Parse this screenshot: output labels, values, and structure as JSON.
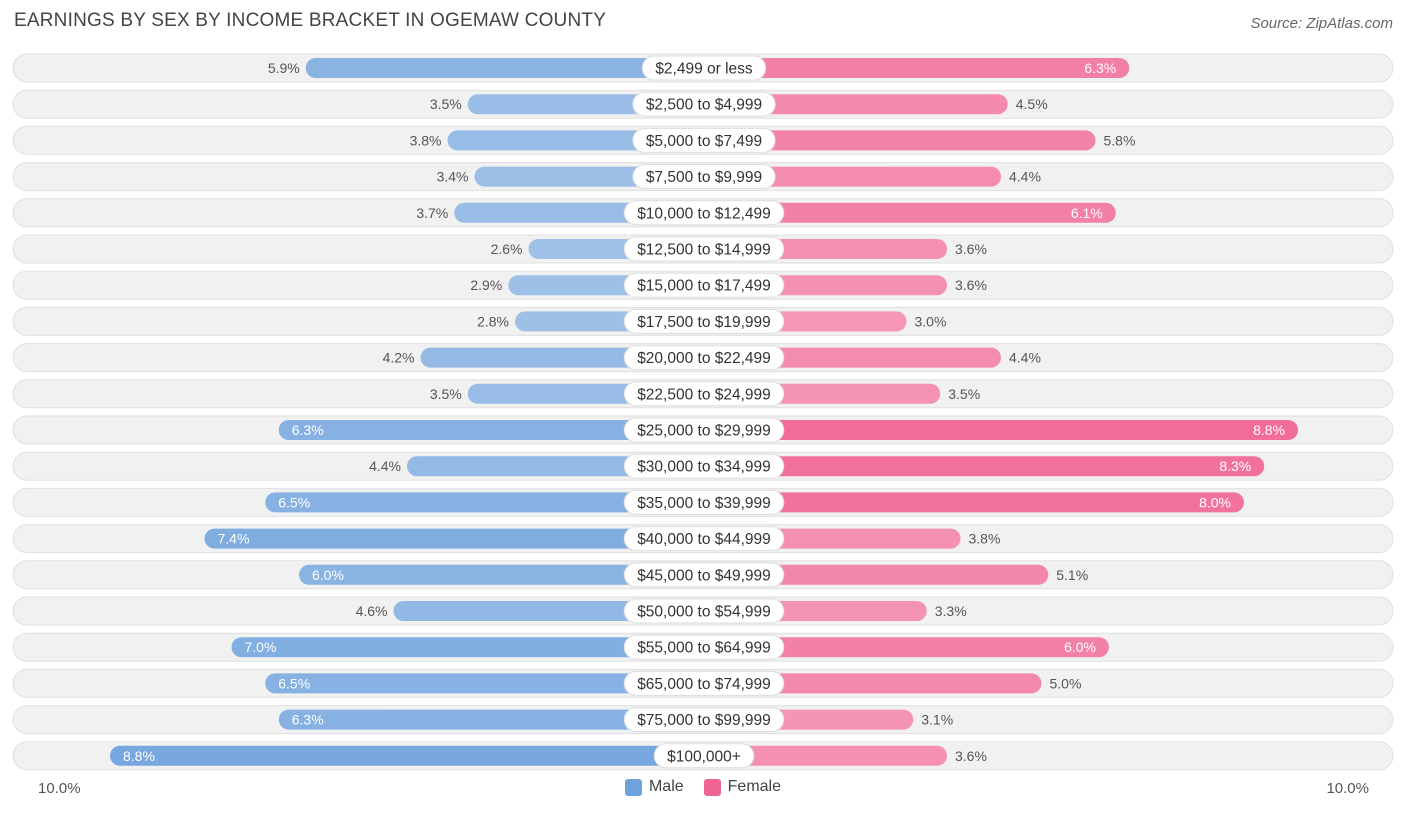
{
  "title": "EARNINGS BY SEX BY INCOME BRACKET IN OGEMAW COUNTY",
  "source": "Source: ZipAtlas.com",
  "chart_data": {
    "type": "bar",
    "orientation": "horizontal-diverging",
    "xlim": [
      -10.0,
      10.0
    ],
    "axis_min_label": "10.0%",
    "axis_max_label": "10.0%",
    "categories": [
      "$2,499 or less",
      "$2,500 to $4,999",
      "$5,000 to $7,499",
      "$7,500 to $9,999",
      "$10,000 to $12,499",
      "$12,500 to $14,999",
      "$15,000 to $17,499",
      "$17,500 to $19,999",
      "$20,000 to $22,499",
      "$22,500 to $24,999",
      "$25,000 to $29,999",
      "$30,000 to $34,999",
      "$35,000 to $39,999",
      "$40,000 to $44,999",
      "$45,000 to $49,999",
      "$50,000 to $54,999",
      "$55,000 to $64,999",
      "$65,000 to $74,999",
      "$75,000 to $99,999",
      "$100,000+"
    ],
    "series": [
      {
        "name": "Male",
        "color": "#6fa2dc",
        "values": [
          5.9,
          3.5,
          3.8,
          3.4,
          3.7,
          2.6,
          2.9,
          2.8,
          4.2,
          3.5,
          6.3,
          4.4,
          6.5,
          7.4,
          6.0,
          4.6,
          7.0,
          6.5,
          6.3,
          8.8
        ],
        "labels": [
          "5.9%",
          "3.5%",
          "3.8%",
          "3.4%",
          "3.7%",
          "2.6%",
          "2.9%",
          "2.8%",
          "4.2%",
          "3.5%",
          "6.3%",
          "4.4%",
          "6.5%",
          "7.4%",
          "6.0%",
          "4.6%",
          "7.0%",
          "6.5%",
          "6.3%",
          "8.8%"
        ]
      },
      {
        "name": "Female",
        "color": "#f06592",
        "values": [
          6.3,
          4.5,
          5.8,
          4.4,
          6.1,
          3.6,
          3.6,
          3.0,
          4.4,
          3.5,
          8.8,
          8.3,
          8.0,
          3.8,
          5.1,
          3.3,
          6.0,
          5.0,
          3.1,
          3.6
        ],
        "labels": [
          "6.3%",
          "4.5%",
          "5.8%",
          "4.4%",
          "6.1%",
          "3.6%",
          "3.6%",
          "3.0%",
          "4.4%",
          "3.5%",
          "8.8%",
          "8.3%",
          "8.0%",
          "3.8%",
          "5.1%",
          "3.3%",
          "6.0%",
          "5.0%",
          "3.1%",
          "3.6%"
        ]
      }
    ]
  },
  "legend": {
    "male_label": "Male",
    "female_label": "Female",
    "male_color": "#6fa2dc",
    "female_color": "#f06592"
  }
}
